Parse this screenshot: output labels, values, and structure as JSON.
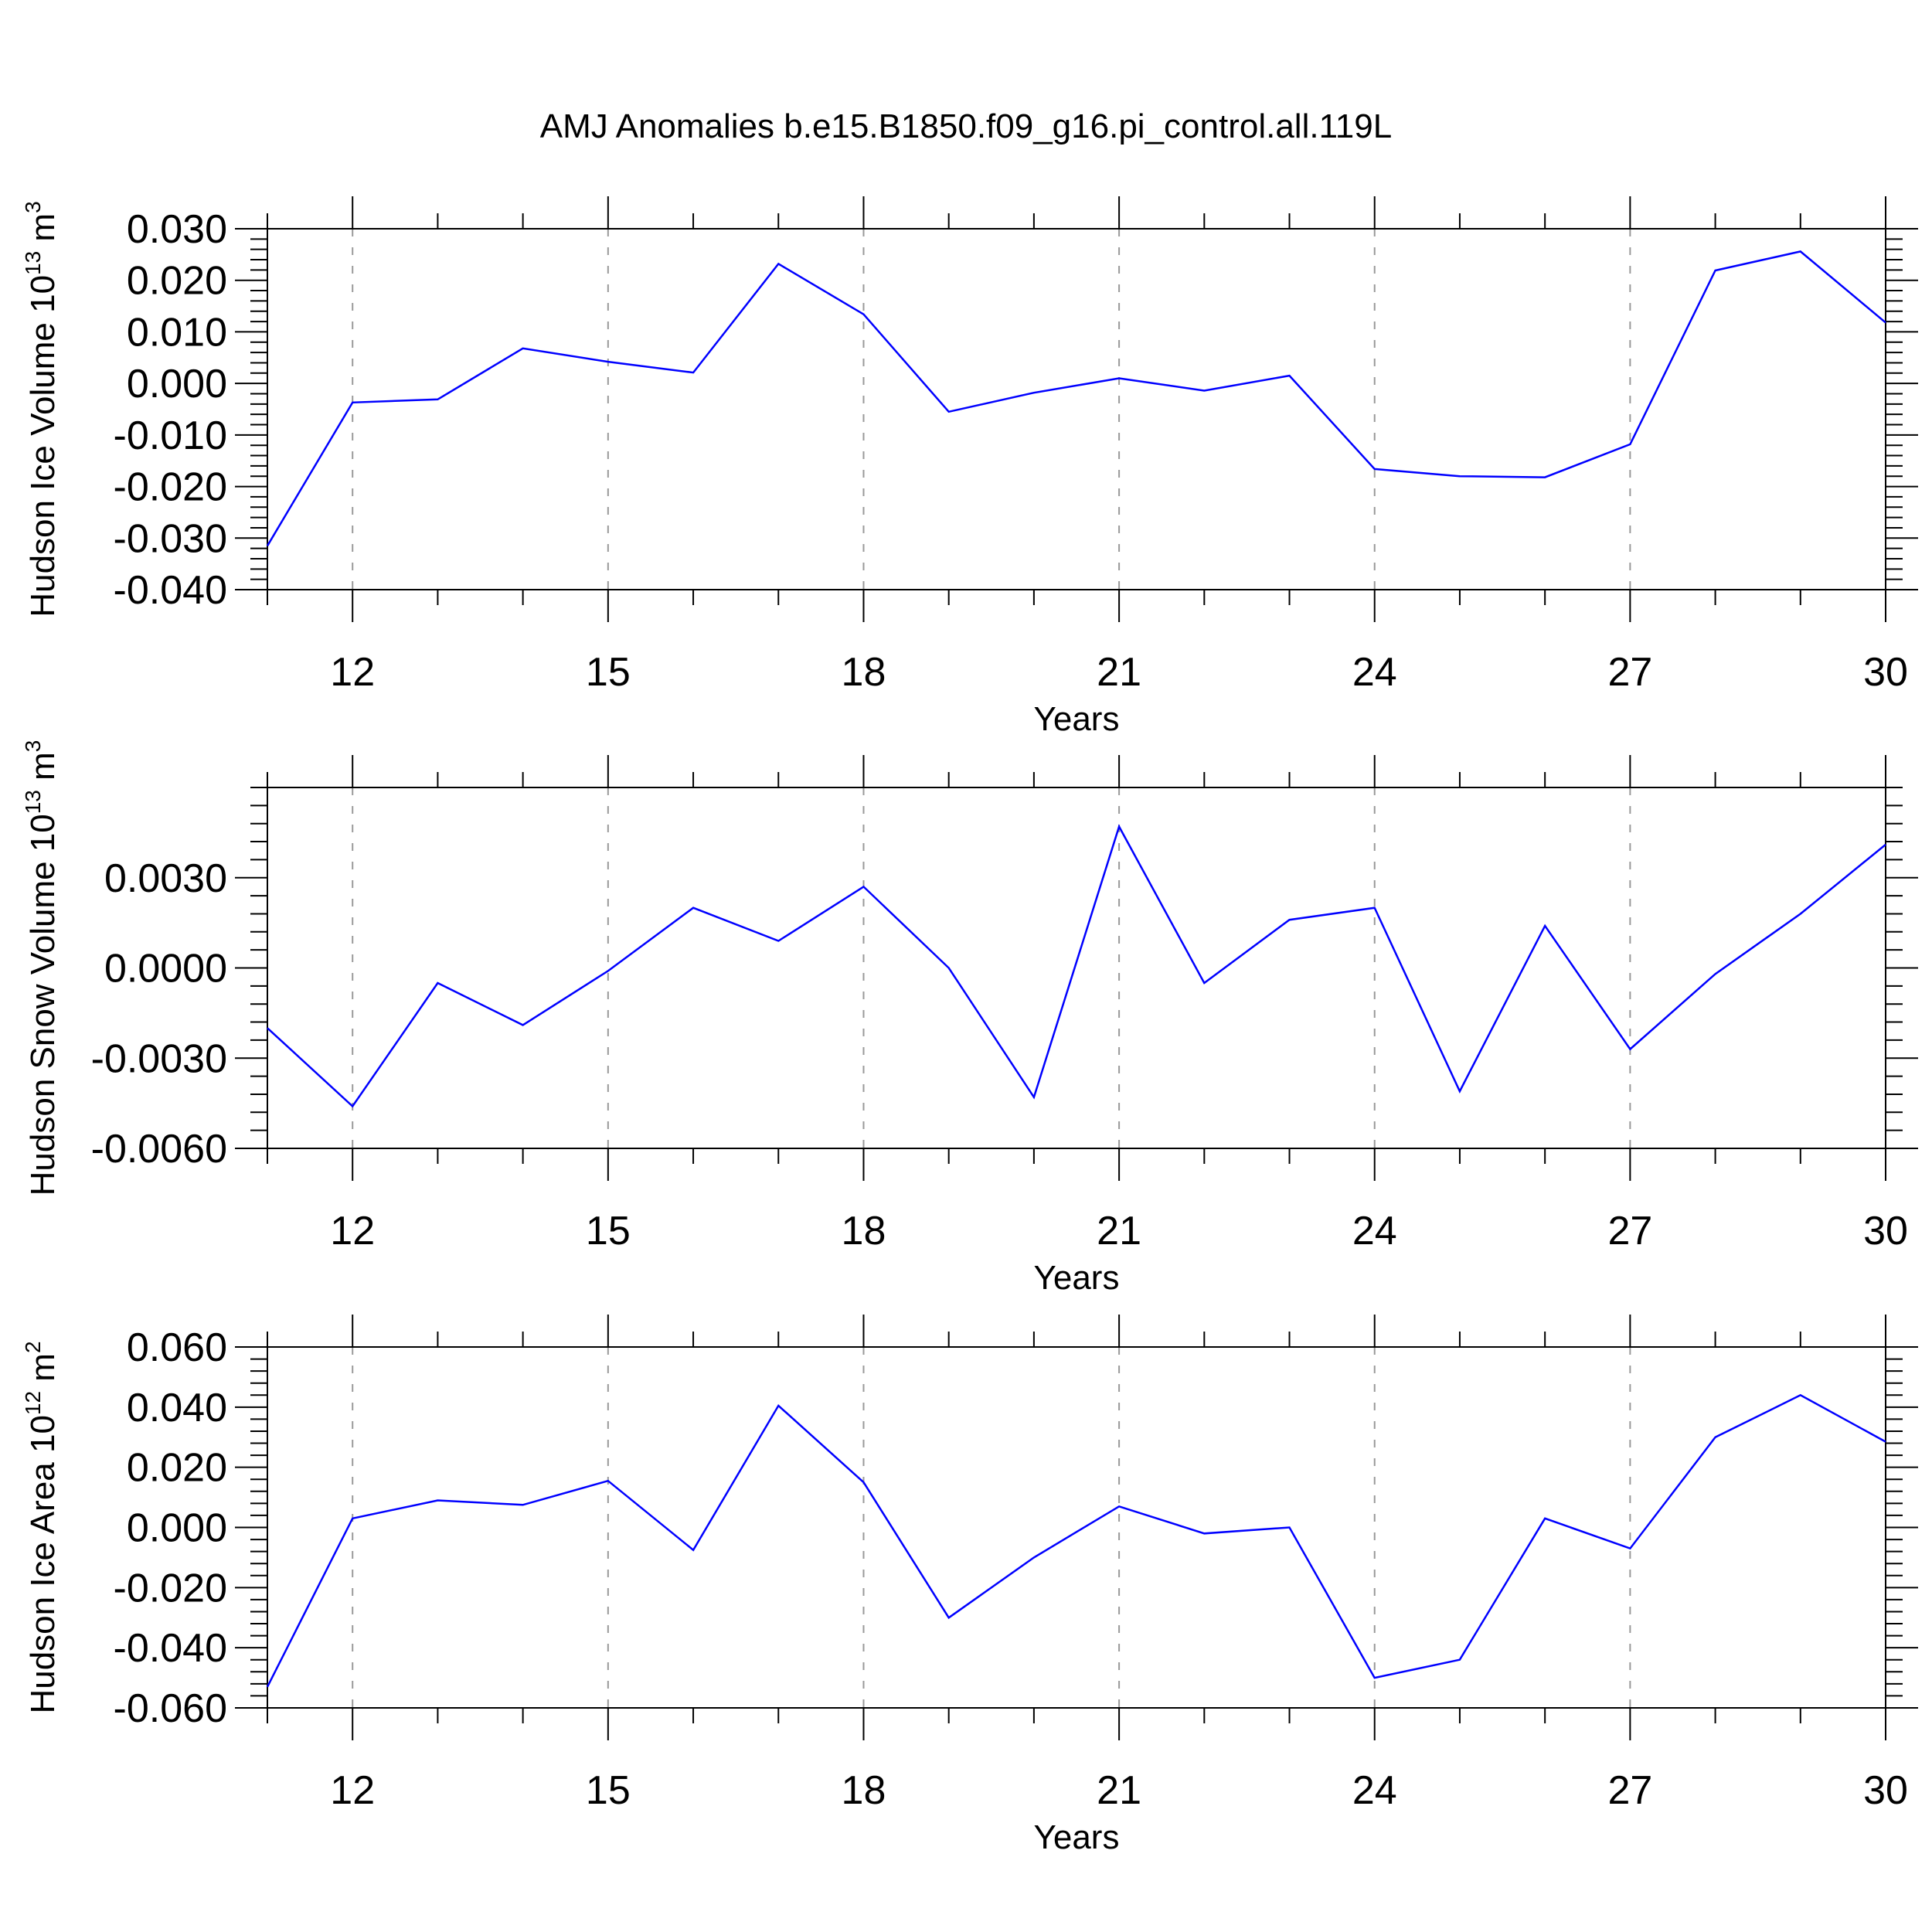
{
  "title": "AMJ Anomalies b.e15.B1850.f09_g16.pi_control.all.119L",
  "colors": {
    "line": "#0000ff",
    "axis": "#000000",
    "gridline": "#999999"
  },
  "chart_data": [
    {
      "type": "line",
      "xlabel": "Years",
      "ylabel_parts": {
        "text": "Hudson Ice Volume 10",
        "exponent": "13",
        "unit": " m",
        "unit_exponent": "3"
      },
      "xlim": [
        11,
        30
      ],
      "ylim": [
        -0.04,
        0.03
      ],
      "xticks": [
        12,
        15,
        18,
        21,
        24,
        27,
        30
      ],
      "xtick_labels": [
        "12",
        "15",
        "18",
        "21",
        "24",
        "27",
        "30"
      ],
      "yticks": [
        -0.04,
        -0.03,
        -0.02,
        -0.01,
        0.0,
        0.01,
        0.02,
        0.03
      ],
      "ytick_labels": [
        "-0.040",
        "-0.030",
        "-0.020",
        "-0.010",
        "0.000",
        "0.010",
        "0.020",
        "0.030"
      ],
      "grid": "vertical dashed at labeled x ticks",
      "series": [
        {
          "color": "#0000ff",
          "x": [
            11,
            12,
            13,
            14,
            15,
            16,
            17,
            18,
            19,
            20,
            21,
            22,
            23,
            24,
            25,
            26,
            27,
            28,
            29,
            30
          ],
          "y": [
            -0.0315,
            -0.0037,
            -0.0031,
            0.0068,
            0.0042,
            0.0021,
            0.0232,
            0.0134,
            -0.0055,
            -0.0018,
            0.001,
            -0.0014,
            0.0015,
            -0.0166,
            -0.018,
            -0.0182,
            -0.0118,
            0.0219,
            0.0256,
            0.0118
          ]
        }
      ]
    },
    {
      "type": "line",
      "xlabel": "Years",
      "ylabel_parts": {
        "text": "Hudson Snow Volume 10",
        "exponent": "13",
        "unit": " m",
        "unit_exponent": "3"
      },
      "xlim": [
        11,
        30
      ],
      "ylim": [
        -0.006,
        0.006
      ],
      "xticks": [
        12,
        15,
        18,
        21,
        24,
        27,
        30
      ],
      "xtick_labels": [
        "12",
        "15",
        "18",
        "21",
        "24",
        "27",
        "30"
      ],
      "yticks": [
        -0.006,
        -0.003,
        0.0,
        0.003
      ],
      "ytick_labels": [
        "-0.0060",
        "-0.0030",
        "0.0000",
        "0.0030"
      ],
      "grid": "vertical dashed at labeled x ticks",
      "series": [
        {
          "color": "#0000ff",
          "x": [
            11,
            12,
            13,
            14,
            15,
            16,
            17,
            18,
            19,
            20,
            21,
            22,
            23,
            24,
            25,
            26,
            27,
            28,
            29,
            30
          ],
          "y": [
            -0.002,
            -0.0046,
            -0.0005,
            -0.0019,
            -0.0001,
            0.002,
            0.0009,
            0.0027,
            0.0,
            -0.0043,
            0.0047,
            -0.0005,
            0.0016,
            0.002,
            -0.0041,
            0.0014,
            -0.0027,
            -0.0002,
            0.0018,
            0.0041
          ]
        }
      ]
    },
    {
      "type": "line",
      "xlabel": "Years",
      "ylabel_parts": {
        "text": "Hudson Ice Area 10",
        "exponent": "12",
        "unit": " m",
        "unit_exponent": "2"
      },
      "xlim": [
        11,
        30
      ],
      "ylim": [
        -0.06,
        0.06
      ],
      "xticks": [
        12,
        15,
        18,
        21,
        24,
        27,
        30
      ],
      "xtick_labels": [
        "12",
        "15",
        "18",
        "21",
        "24",
        "27",
        "30"
      ],
      "yticks": [
        -0.06,
        -0.04,
        -0.02,
        0.0,
        0.02,
        0.04,
        0.06
      ],
      "ytick_labels": [
        "-0.060",
        "-0.040",
        "-0.020",
        "0.000",
        "0.020",
        "0.040",
        "0.060"
      ],
      "grid": "vertical dashed at labeled x ticks",
      "series": [
        {
          "color": "#0000ff",
          "x": [
            11,
            12,
            13,
            14,
            15,
            16,
            17,
            18,
            19,
            20,
            21,
            22,
            23,
            24,
            25,
            26,
            27,
            28,
            29,
            30
          ],
          "y": [
            -0.053,
            0.003,
            0.009,
            0.0075,
            0.0155,
            -0.0075,
            0.0405,
            0.015,
            -0.03,
            -0.01,
            0.007,
            -0.002,
            0.0,
            -0.05,
            -0.044,
            0.003,
            -0.007,
            0.03,
            0.044,
            0.0285
          ]
        }
      ]
    }
  ]
}
